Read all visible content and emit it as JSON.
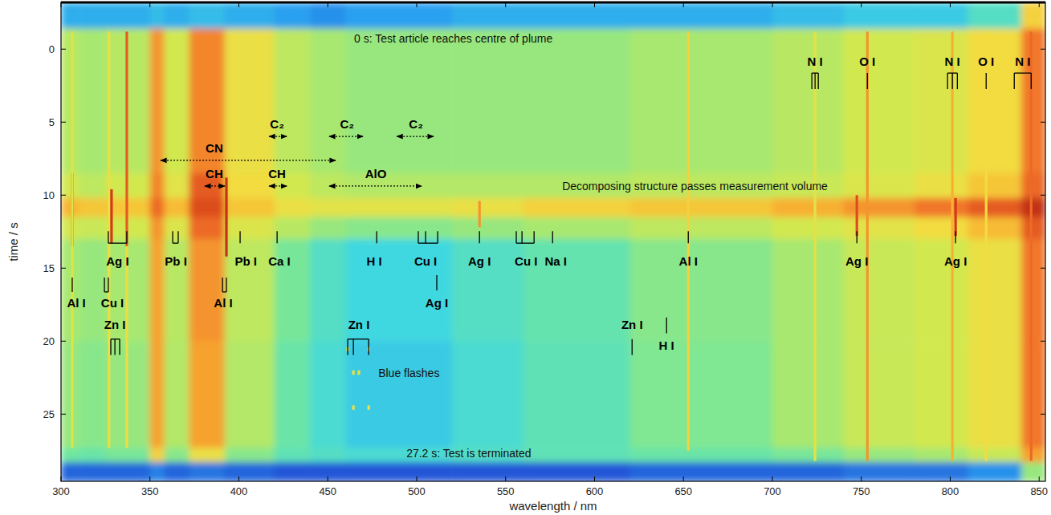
{
  "chart_data": {
    "type": "heatmap",
    "x_label": "wavelength / nm",
    "y_label": "time / s",
    "xlim": [
      300,
      853.5
    ],
    "ylim": [
      -3.2,
      29.6
    ],
    "xticks": [
      300,
      350,
      400,
      450,
      500,
      550,
      600,
      650,
      700,
      750,
      800,
      850
    ],
    "yticks": [
      0,
      5,
      10,
      15,
      20,
      25
    ],
    "zlim": [
      0,
      1
    ],
    "x_edges": [
      300,
      310,
      325,
      350,
      358,
      372,
      392,
      420,
      440,
      460,
      520,
      560,
      620,
      700,
      740,
      780,
      810,
      840,
      853.5
    ],
    "y_edges": [
      -3.2,
      -1.4,
      8.5,
      10.2,
      11.5,
      13,
      20,
      27.3,
      28.3,
      29.6
    ],
    "cells": [
      [
        0.3,
        0.3,
        0.3,
        0.32,
        0.3,
        0.32,
        0.3,
        0.28,
        0.26,
        0.28,
        0.3,
        0.3,
        0.3,
        0.32,
        0.34,
        0.34,
        0.4,
        0.7
      ],
      [
        0.55,
        0.52,
        0.55,
        0.8,
        0.6,
        0.82,
        0.66,
        0.56,
        0.52,
        0.5,
        0.5,
        0.5,
        0.52,
        0.55,
        0.6,
        0.62,
        0.68,
        0.84
      ],
      [
        0.6,
        0.56,
        0.6,
        0.82,
        0.64,
        0.88,
        0.68,
        0.6,
        0.56,
        0.54,
        0.54,
        0.54,
        0.56,
        0.58,
        0.62,
        0.66,
        0.72,
        0.86
      ],
      [
        0.75,
        0.72,
        0.72,
        0.86,
        0.74,
        0.9,
        0.72,
        0.66,
        0.64,
        0.64,
        0.66,
        0.7,
        0.72,
        0.76,
        0.8,
        0.84,
        0.88,
        0.95
      ],
      [
        0.6,
        0.58,
        0.6,
        0.8,
        0.62,
        0.86,
        0.62,
        0.55,
        0.5,
        0.48,
        0.5,
        0.52,
        0.56,
        0.6,
        0.64,
        0.68,
        0.74,
        0.88
      ],
      [
        0.52,
        0.5,
        0.52,
        0.78,
        0.55,
        0.8,
        0.56,
        0.46,
        0.4,
        0.36,
        0.4,
        0.43,
        0.48,
        0.52,
        0.58,
        0.6,
        0.66,
        0.84
      ],
      [
        0.5,
        0.48,
        0.5,
        0.78,
        0.54,
        0.78,
        0.54,
        0.44,
        0.38,
        0.34,
        0.38,
        0.42,
        0.47,
        0.52,
        0.58,
        0.6,
        0.66,
        0.84
      ],
      [
        0.45,
        0.44,
        0.46,
        0.7,
        0.48,
        0.66,
        0.48,
        0.42,
        0.4,
        0.38,
        0.4,
        0.42,
        0.44,
        0.46,
        0.5,
        0.52,
        0.58,
        0.78
      ],
      [
        0.2,
        0.2,
        0.2,
        0.24,
        0.2,
        0.22,
        0.2,
        0.18,
        0.18,
        0.18,
        0.18,
        0.18,
        0.2,
        0.2,
        0.22,
        0.22,
        0.26,
        0.5
      ]
    ],
    "emission_lines": [
      {
        "wavelength": 306.3,
        "start": 8.5,
        "end": 13.5,
        "value": 0.93
      },
      {
        "wavelength": 306.3,
        "start": -1.2,
        "end": 27.3,
        "value": 0.62
      },
      {
        "wavelength": 327.0,
        "start": -1.2,
        "end": 27.3,
        "value": 0.66
      },
      {
        "wavelength": 328.4,
        "start": 9.6,
        "end": 13.3,
        "value": 0.93
      },
      {
        "wavelength": 337.0,
        "start": -1.2,
        "end": 13.5,
        "value": 0.88
      },
      {
        "wavelength": 337.0,
        "start": 13.5,
        "end": 27.3,
        "value": 0.66
      },
      {
        "wavelength": 393.0,
        "start": 8.8,
        "end": 14.2,
        "value": 0.95
      },
      {
        "wavelength": 535.3,
        "start": 10.4,
        "end": 12.2,
        "value": 0.8
      },
      {
        "wavelength": 652.7,
        "start": -1.2,
        "end": 27.5,
        "value": 0.7
      },
      {
        "wavelength": 724.0,
        "start": -1.2,
        "end": 28.2,
        "value": 0.64
      },
      {
        "wavelength": 747.5,
        "start": 10.0,
        "end": 12.8,
        "value": 0.9
      },
      {
        "wavelength": 753.4,
        "start": -1.2,
        "end": 28.2,
        "value": 0.8
      },
      {
        "wavelength": 801.2,
        "start": -1.2,
        "end": 28.2,
        "value": 0.76
      },
      {
        "wavelength": 803.0,
        "start": 10.2,
        "end": 12.8,
        "value": 0.93
      },
      {
        "wavelength": 820.2,
        "start": -1.2,
        "end": 28.2,
        "value": 0.68
      },
      {
        "wavelength": 845.5,
        "start": -1.2,
        "end": 28.2,
        "value": 0.86
      },
      {
        "wavelength": 461.2,
        "start": 20.4,
        "end": 20.7,
        "value": 0.66
      },
      {
        "wavelength": 473.0,
        "start": 20.4,
        "end": 20.7,
        "value": 0.66
      },
      {
        "wavelength": 464.4,
        "start": 22.0,
        "end": 22.3,
        "value": 0.66
      },
      {
        "wavelength": 467.5,
        "start": 22.0,
        "end": 22.3,
        "value": 0.66
      },
      {
        "wavelength": 473.0,
        "start": 24.4,
        "end": 24.7,
        "value": 0.66
      },
      {
        "wavelength": 464.4,
        "start": 24.4,
        "end": 24.7,
        "value": 0.66
      }
    ],
    "species_labels": [
      {
        "text": "N I",
        "x": 724.0,
        "y": 1.15,
        "ticks": [
          722.2,
          724.0,
          725.8
        ],
        "tick_from": 1.64,
        "tick_to": 2.74
      },
      {
        "text": "O I",
        "x": 753.4,
        "y": 1.15,
        "ticks": [
          753.4
        ],
        "tick_from": 1.64,
        "tick_to": 2.74
      },
      {
        "text": "N I",
        "x": 801.2,
        "y": 1.15,
        "ticks": [
          798.5,
          801.2,
          804.0
        ],
        "tick_from": 1.64,
        "tick_to": 2.74
      },
      {
        "text": "O I",
        "x": 820.2,
        "y": 1.15,
        "ticks": [
          820.2
        ],
        "tick_from": 1.64,
        "tick_to": 2.74
      },
      {
        "text": "N I",
        "x": 840.8,
        "y": 1.15,
        "ticks": [
          836.0,
          845.5
        ],
        "tick_from": 1.64,
        "tick_to": 2.74
      },
      {
        "text": "Ag I",
        "x": 331.8,
        "y": 14.82,
        "ticks": [
          326.6,
          337.0
        ],
        "tick_from": 12.47,
        "tick_to": 13.29
      },
      {
        "text": "Pb I",
        "x": 364.6,
        "y": 14.82,
        "ticks": [
          362.8,
          365.9
        ],
        "tick_from": 12.47,
        "tick_to": 13.29
      },
      {
        "text": "Pb I",
        "x": 403.9,
        "y": 14.82,
        "ticks": [
          400.7
        ],
        "tick_from": 12.47,
        "tick_to": 13.29
      },
      {
        "text": "Ca I",
        "x": 422.8,
        "y": 14.82,
        "ticks": [
          421.5
        ],
        "tick_from": 12.47,
        "tick_to": 13.29
      },
      {
        "text": "H I",
        "x": 476.1,
        "y": 14.82,
        "ticks": [
          477.5
        ],
        "tick_from": 12.47,
        "tick_to": 13.29
      },
      {
        "text": "Cu I",
        "x": 505.0,
        "y": 14.82,
        "ticks": [
          500.9,
          505.0,
          511.8
        ],
        "tick_from": 12.47,
        "tick_to": 13.29
      },
      {
        "text": "Ag I",
        "x": 535.3,
        "y": 14.82,
        "ticks": [
          535.3
        ],
        "tick_from": 12.47,
        "tick_to": 13.29
      },
      {
        "text": "Cu I",
        "x": 561.5,
        "y": 14.82,
        "ticks": [
          556.0,
          559.2,
          566.0
        ],
        "tick_from": 12.47,
        "tick_to": 13.29
      },
      {
        "text": "Na I",
        "x": 578.2,
        "y": 14.82,
        "ticks": [
          576.4
        ],
        "tick_from": 12.47,
        "tick_to": 13.29
      },
      {
        "text": "Al I",
        "x": 652.7,
        "y": 14.82,
        "ticks": [
          652.7
        ],
        "tick_from": 12.47,
        "tick_to": 13.29
      },
      {
        "text": "Ag I",
        "x": 747.5,
        "y": 14.82,
        "ticks": [
          747.5
        ],
        "tick_from": 12.47,
        "tick_to": 13.29
      },
      {
        "text": "Ag I",
        "x": 803.0,
        "y": 14.82,
        "ticks": [
          803.0
        ],
        "tick_from": 12.47,
        "tick_to": 13.29
      },
      {
        "text": "Al I",
        "x": 308.6,
        "y": 17.67,
        "ticks": [
          306.3
        ],
        "tick_from": 15.65,
        "tick_to": 16.63
      },
      {
        "text": "Cu I",
        "x": 328.9,
        "y": 17.67,
        "ticks": [
          324.4,
          326.6
        ],
        "tick_from": 15.65,
        "tick_to": 16.63
      },
      {
        "text": "Al I",
        "x": 391.2,
        "y": 17.67,
        "ticks": [
          390.8,
          393.0
        ],
        "tick_from": 15.65,
        "tick_to": 16.63
      },
      {
        "text": "Ag I",
        "x": 511.3,
        "y": 17.67,
        "ticks": [
          511.3
        ],
        "tick_from": 15.48,
        "tick_to": 16.52
      },
      {
        "text": "Zn I",
        "x": 330.3,
        "y": 19.15,
        "ticks": [
          328.0,
          330.3,
          333.0
        ],
        "tick_from": 19.86,
        "tick_to": 20.95
      },
      {
        "text": "Zn I",
        "x": 467.5,
        "y": 19.15,
        "ticks": [
          461.2,
          464.4,
          473.0
        ],
        "tick_from": 19.86,
        "tick_to": 20.95
      },
      {
        "text": "Zn I",
        "x": 621.1,
        "y": 19.15,
        "ticks": [
          621.1
        ],
        "tick_from": 19.86,
        "tick_to": 20.95
      },
      {
        "text": "H I",
        "x": 640.5,
        "y": 20.57,
        "ticks": [
          640.5
        ],
        "tick_from": 18.38,
        "tick_to": 19.47
      }
    ],
    "band_labels": [
      {
        "text": "C₂",
        "x": 421.5,
        "y": 5.43,
        "from": 417.0,
        "to": 426.9,
        "arrow_y": 5.98
      },
      {
        "text": "C₂",
        "x": 460.8,
        "y": 5.43,
        "from": 450.8,
        "to": 469.8,
        "arrow_y": 5.98
      },
      {
        "text": "C₂",
        "x": 499.6,
        "y": 5.43,
        "from": 488.8,
        "to": 509.5,
        "arrow_y": 5.98
      },
      {
        "text": "CN",
        "x": 386.2,
        "y": 7.07,
        "from": 356.0,
        "to": 454.4,
        "arrow_y": 7.62
      },
      {
        "text": "CH",
        "x": 386.2,
        "y": 8.83,
        "from": 380.8,
        "to": 392.1,
        "arrow_y": 9.38
      },
      {
        "text": "CH",
        "x": 421.5,
        "y": 8.83,
        "from": 417.0,
        "to": 426.9,
        "arrow_y": 9.38
      },
      {
        "text": "AlO",
        "x": 477.0,
        "y": 8.83,
        "from": 450.8,
        "to": 502.8,
        "arrow_y": 9.38
      }
    ],
    "annotations": [
      {
        "text": "0 s: Test article reaches centre of plume",
        "x": 464.8,
        "y": -0.44
      },
      {
        "text": "Decomposing structure passes measurement volume",
        "x": 581.8,
        "y": 9.66
      },
      {
        "text": "Blue flashes",
        "x": 478.4,
        "y": 22.46
      },
      {
        "text": "27.2 s: Test is terminated",
        "x": 494.2,
        "y": 27.95
      }
    ]
  }
}
